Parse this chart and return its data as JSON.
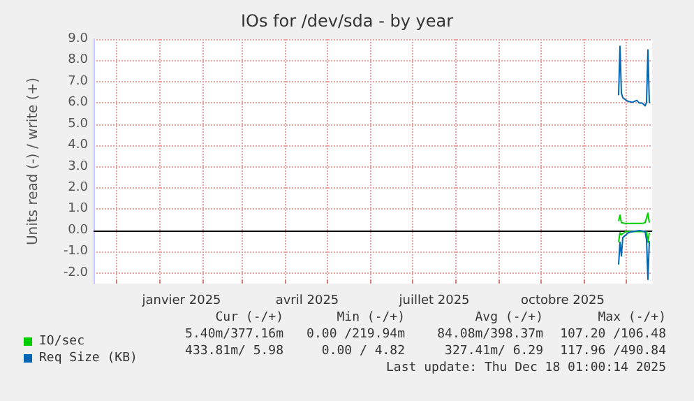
{
  "chart_data": {
    "type": "line",
    "title": "IOs for /dev/sda - by year",
    "ylabel": "Units read (-) / write (+)",
    "xlim": [
      "2024-11-15",
      "2025-12-20"
    ],
    "xticks": [
      {
        "value": "2024-12-01",
        "label": null
      },
      {
        "value": "2025-01-01",
        "label": null
      },
      {
        "value": "2025-02-01",
        "label": null
      },
      {
        "value": "2025-03-01",
        "label": null
      },
      {
        "value": "2025-04-01",
        "label": null
      },
      {
        "value": "2025-05-01",
        "label": null
      },
      {
        "value": "2025-06-01",
        "label": null
      },
      {
        "value": "2025-07-01",
        "label": null
      },
      {
        "value": "2025-08-01",
        "label": null
      },
      {
        "value": "2025-09-01",
        "label": null
      },
      {
        "value": "2025-10-01",
        "label": null
      },
      {
        "value": "2025-11-01",
        "label": null
      },
      {
        "value": "2025-12-01",
        "label": null
      },
      {
        "value": "2025-01-17",
        "label": "janvier 2025"
      },
      {
        "value": "2025-04-17",
        "label": "avril 2025"
      },
      {
        "value": "2025-07-17",
        "label": "juillet 2025"
      },
      {
        "value": "2025-10-17",
        "label": "octobre 2025"
      }
    ],
    "ylim": [
      -2.5,
      9.0
    ],
    "yticks": [
      {
        "value": -2,
        "label": "-2.0"
      },
      {
        "value": -1,
        "label": "-1.0"
      },
      {
        "value": 0,
        "label": "0.0"
      },
      {
        "value": 1,
        "label": "1.0"
      },
      {
        "value": 2,
        "label": "2.0"
      },
      {
        "value": 3,
        "label": "3.0"
      },
      {
        "value": 4,
        "label": "4.0"
      },
      {
        "value": 5,
        "label": "5.0"
      },
      {
        "value": 6,
        "label": "6.0"
      },
      {
        "value": 7,
        "label": "7.0"
      },
      {
        "value": 8,
        "label": "8.0"
      },
      {
        "value": 9,
        "label": "9.0"
      }
    ],
    "grid": true,
    "legend": "bottom left",
    "marker": "none",
    "line_style": "solid",
    "ref_lines": [
      {
        "axis": "y",
        "value": 0,
        "label": null,
        "color": "#000000"
      }
    ],
    "series": [
      {
        "name": "IO/sec",
        "color": "#00cc00",
        "x": [
          "2025-11-26",
          "2025-11-27",
          "2025-11-28",
          "2025-12-01",
          "2025-12-06",
          "2025-12-13",
          "2025-12-15",
          "2025-12-17",
          "2025-12-18"
        ],
        "values": [
          0.44,
          0.72,
          0.37,
          0.33,
          0.33,
          0.33,
          0.37,
          0.81,
          0.37
        ]
      },
      {
        "color": "#00cc00",
        "x": [
          "2025-11-26",
          "2025-11-27",
          "2025-11-28",
          "2025-12-01",
          "2025-12-13",
          "2025-12-16",
          "2025-12-17",
          "2025-12-18"
        ],
        "values": [
          -0.55,
          -0.1,
          -0.2,
          -0.05,
          -0.05,
          -0.07,
          -0.55,
          -0.1
        ]
      },
      {
        "name": "Req Size (KB)",
        "color": "#0066b3",
        "x": [
          "2025-11-26",
          "2025-11-27",
          "2025-11-28",
          "2025-11-29",
          "2025-12-01",
          "2025-12-03",
          "2025-12-06",
          "2025-12-09",
          "2025-12-11",
          "2025-12-13",
          "2025-12-15",
          "2025-12-16",
          "2025-12-17",
          "2025-12-18"
        ],
        "values": [
          6.36,
          8.66,
          6.47,
          6.25,
          6.14,
          6.07,
          6.03,
          6.12,
          5.99,
          5.99,
          5.86,
          6.03,
          8.49,
          5.99
        ]
      },
      {
        "color": "#0066b3",
        "x": [
          "2025-11-26",
          "2025-11-27",
          "2025-11-28",
          "2025-11-29",
          "2025-12-01",
          "2025-12-03",
          "2025-12-06",
          "2025-12-11",
          "2025-12-15",
          "2025-12-16",
          "2025-12-17",
          "2025-12-18"
        ],
        "values": [
          -1.6,
          -0.55,
          -1.2,
          -0.33,
          -0.22,
          -0.1,
          -0.05,
          0.0,
          -0.05,
          -0.44,
          -2.3,
          -0.5
        ]
      }
    ],
    "annotations": [
      "Cur (-/+)",
      "Min (-/+)",
      "Avg (-/+)",
      "Max (-/+)",
      "5.40m/377.16m",
      "0.00 /219.94m",
      "84.08m/398.37m",
      "107.20 /106.48",
      "433.81m/ 5.98",
      "0.00 / 4.82",
      "327.41m/ 6.29",
      "117.96 /490.84",
      "Last update: Thu Dec 18 01:00:14 2025"
    ]
  }
}
